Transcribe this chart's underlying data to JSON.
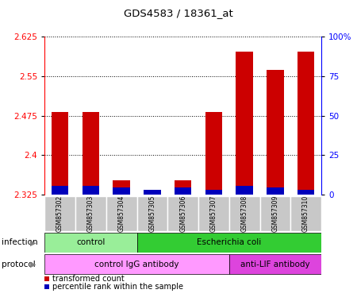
{
  "title": "GDS4583 / 18361_at",
  "samples": [
    "GSM857302",
    "GSM857303",
    "GSM857304",
    "GSM857305",
    "GSM857306",
    "GSM857307",
    "GSM857308",
    "GSM857309",
    "GSM857310"
  ],
  "red_values": [
    2.482,
    2.482,
    2.352,
    2.333,
    2.352,
    2.482,
    2.597,
    2.562,
    2.597
  ],
  "blue_values": [
    2.342,
    2.342,
    2.338,
    2.334,
    2.338,
    2.334,
    2.341,
    2.338,
    2.334
  ],
  "ymin": 2.325,
  "ymax": 2.625,
  "yticks": [
    2.325,
    2.4,
    2.475,
    2.55,
    2.625
  ],
  "y2ticks_vals": [
    0,
    25,
    50,
    75,
    100
  ],
  "y2labels": [
    "0",
    "25",
    "50",
    "75",
    "100%"
  ],
  "infection_groups": [
    {
      "label": "control",
      "start": 0,
      "end": 3,
      "color": "#99EE99"
    },
    {
      "label": "Escherichia coli",
      "start": 3,
      "end": 9,
      "color": "#33CC33"
    }
  ],
  "protocol_groups": [
    {
      "label": "control IgG antibody",
      "start": 0,
      "end": 6,
      "color": "#FF99FF"
    },
    {
      "label": "anti-LIF antibody",
      "start": 6,
      "end": 9,
      "color": "#DD44DD"
    }
  ],
  "red_color": "#CC0000",
  "blue_color": "#0000BB",
  "bar_width": 0.55,
  "legend_red": "transformed count",
  "legend_blue": "percentile rank within the sample",
  "infection_label": "infection",
  "protocol_label": "protocol",
  "sample_bg": "#C8C8C8"
}
